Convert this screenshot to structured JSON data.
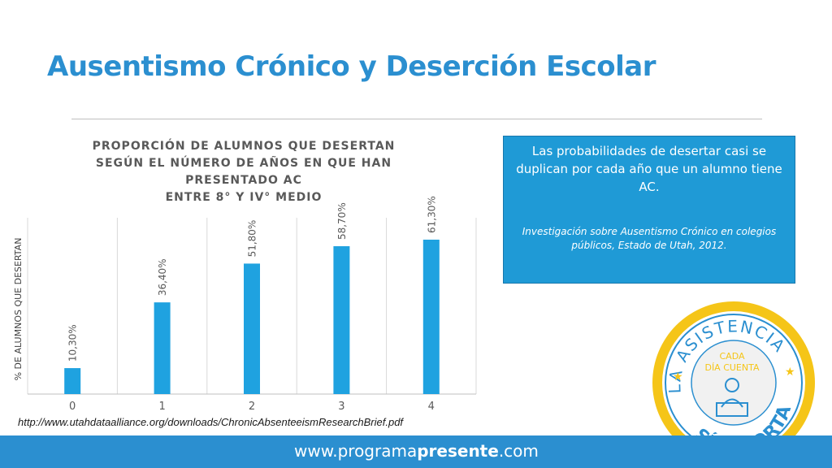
{
  "slide": {
    "title": "Ausentismo Crónico y Deserción Escolar",
    "source_url": "http://www.utahdataalliance.org/downloads/ChronicAbsenteeismResearchBrief.pdf",
    "footer": {
      "prefix": "www.programa",
      "bold": "presente",
      "suffix": ".com"
    }
  },
  "callout": {
    "text": "Las probabilidades de desertar casi se duplican por cada año que un alumno tiene AC.",
    "citation": "Investigación sobre Ausentismo Crónico en colegios públicos, Estado de Utah, 2012."
  },
  "seal": {
    "top_text": "LA ASISTENCIA",
    "bottom_text": "SÍ IMPORTA",
    "inner_line1": "CADA",
    "inner_line2": "DÍA CUENTA"
  },
  "colors": {
    "accent": "#2b8fd0",
    "bar": "#1fa2e0",
    "callout": "#1f9ad6",
    "seal_yellow": "#f5c518"
  },
  "chart_data": {
    "type": "bar",
    "title_lines": [
      "PROPORCIÓN DE ALUMNOS QUE DESERTAN",
      "SEGÚN EL NÚMERO DE AÑOS EN QUE HAN",
      "PRESENTADO AC",
      "ENTRE 8° Y IV° MEDIO"
    ],
    "categories": [
      "0",
      "1",
      "2",
      "3",
      "4"
    ],
    "values": [
      10.3,
      36.4,
      51.8,
      58.7,
      61.3
    ],
    "data_labels": [
      "10,30%",
      "36,40%",
      "51,80%",
      "58,70%",
      "61,30%"
    ],
    "xlabel": "",
    "ylabel": "% DE ALUMNOS QUE DESERTAN",
    "ylim": [
      0,
      70
    ],
    "grid": true,
    "legend": "none"
  }
}
